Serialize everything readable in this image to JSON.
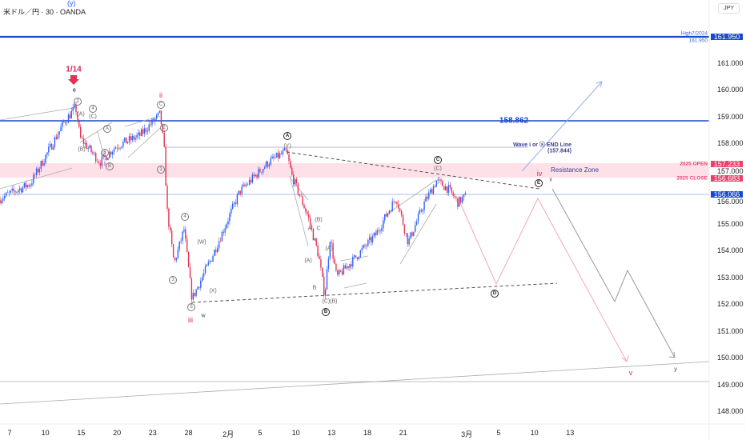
{
  "header": {
    "symbol_title": "米ドル／円 · 30 · OANDA",
    "top_wave_label": "(y)",
    "currency_button": "JPY"
  },
  "colors": {
    "up": "#2962ff",
    "down": "#e5314f",
    "level_blue": "#1848cc",
    "zone_pink": "#fde0e8",
    "tag_pink": "#ee3e6c",
    "projection_pink": "#f4a6b8",
    "projection_gray": "#999999"
  },
  "levels": {
    "high_2024": {
      "label": "High7/2024",
      "sub": "161.950",
      "price": "161.950"
    },
    "blue_level": {
      "price": "158.862"
    },
    "wave_end": {
      "label": "Wave i or ⓐ END Line",
      "sub": "(157.844)"
    },
    "open_2025": {
      "label": "2025 OPEN",
      "price": "157.233"
    },
    "close_2025": {
      "label": "2025 CLOSE",
      "price": "156.683"
    },
    "current": {
      "price": "156.066"
    },
    "resistance_zone": "Resistance Zone"
  },
  "annotations": {
    "date_marker": "1/14",
    "c": "c",
    "ii": "ii",
    "i": "i",
    "iii": "iii",
    "iv": "iv",
    "v": "v",
    "w": "w",
    "x": "x",
    "y": "y",
    "A_circ": "A",
    "B_circ": "B",
    "C_circ": "C",
    "D_circ": "D",
    "E_circ": "E",
    "n1": "1",
    "n2": "2",
    "n3": "3",
    "n4": "4",
    "n5": "5",
    "pA": "(A)",
    "pB": "(B)",
    "pC": "(C)",
    "pW": "(W)",
    "pX": "(X)",
    "pY": "(Y)",
    "pCB": "(C)(B)",
    "A": "A",
    "B": "B",
    "C": "C"
  },
  "chart_data": {
    "type": "candlestick",
    "title": "米ドル／円 · 30 · OANDA",
    "ylim": [
      147.7,
      162.4
    ],
    "y_ticks": [
      "161.000",
      "160.000",
      "159.000",
      "158.000",
      "157.000",
      "156.000",
      "155.000",
      "154.000",
      "153.000",
      "152.000",
      "151.000",
      "150.000",
      "149.000",
      "148.000"
    ],
    "x_ticks": [
      {
        "label": "7",
        "date": "2025-01-07"
      },
      {
        "label": "10",
        "date": "2025-01-10"
      },
      {
        "label": "15",
        "date": "2025-01-15"
      },
      {
        "label": "20",
        "date": "2025-01-20"
      },
      {
        "label": "23",
        "date": "2025-01-23"
      },
      {
        "label": "28",
        "date": "2025-01-28"
      },
      {
        "label": "2月",
        "date": "2025-02-03"
      },
      {
        "label": "5",
        "date": "2025-02-05"
      },
      {
        "label": "10",
        "date": "2025-02-10"
      },
      {
        "label": "13",
        "date": "2025-02-13"
      },
      {
        "label": "18",
        "date": "2025-02-18"
      },
      {
        "label": "21",
        "date": "2025-02-21"
      },
      {
        "label": "3月",
        "date": "2025-03-03"
      },
      {
        "label": "5",
        "date": "2025-03-05"
      },
      {
        "label": "10",
        "date": "2025-03-10"
      },
      {
        "label": "13",
        "date": "2025-03-13"
      }
    ],
    "price_path": [
      [
        "2025-01-06 00",
        155.9
      ],
      [
        "2025-01-08 18",
        156.5
      ],
      [
        "2025-01-13 14",
        158.8
      ],
      [
        "2025-01-14 13",
        159.35
      ],
      [
        "2025-01-14 22",
        158.2
      ],
      [
        "2025-01-16 14",
        157.3
      ],
      [
        "2025-01-17 22",
        157.9
      ],
      [
        "2025-01-21 22",
        158.3
      ],
      [
        "2025-01-23 15",
        159.1
      ],
      [
        "2025-01-23 23",
        157.8
      ],
      [
        "2025-01-24 05",
        155.5
      ],
      [
        "2025-01-24 19",
        153.5
      ],
      [
        "2025-01-27 15",
        154.8
      ],
      [
        "2025-01-28 07",
        152.2
      ],
      [
        "2025-01-30 00",
        153.8
      ],
      [
        "2025-02-03 07",
        156.2
      ],
      [
        "2025-02-05 17",
        157.3
      ],
      [
        "2025-02-07 05",
        157.7
      ],
      [
        "2025-02-07 16",
        156.8
      ],
      [
        "2025-02-11 00",
        155.3
      ],
      [
        "2025-02-11 22",
        153.8
      ],
      [
        "2025-02-12 10",
        152.3
      ],
      [
        "2025-02-12 21",
        154.5
      ],
      [
        "2025-02-13 10",
        153.0
      ],
      [
        "2025-02-14 17",
        153.6
      ],
      [
        "2025-02-18 17",
        154.6
      ],
      [
        "2025-02-20 10",
        156.0
      ],
      [
        "2025-02-21 10",
        154.3
      ],
      [
        "2025-02-24 19",
        155.8
      ],
      [
        "2025-02-25 19",
        156.6
      ],
      [
        "2025-02-26 19",
        156.3
      ],
      [
        "2025-02-27 14",
        155.8
      ],
      [
        "2025-02-28 07",
        156.05
      ]
    ]
  }
}
